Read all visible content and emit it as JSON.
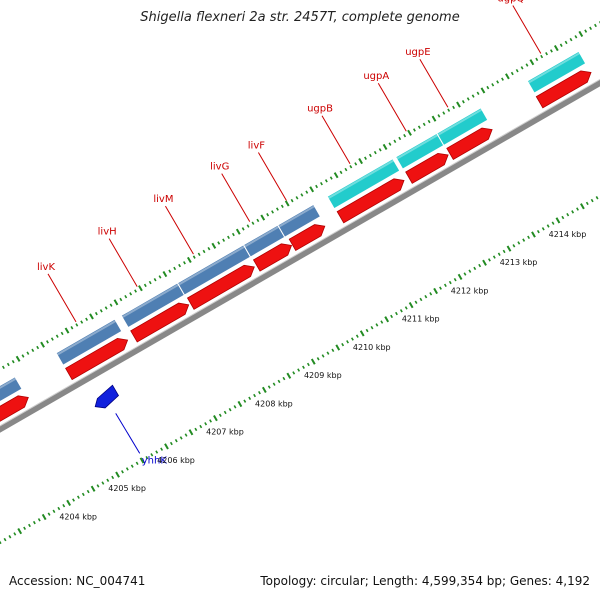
{
  "title": "Shigella flexneri 2a str. 2457T, complete genome",
  "footer": {
    "accession": "Accession: NC_004741",
    "summary": "Topology: circular; Length: 4,599,354 bp; Genes: 4,192"
  },
  "colors": {
    "background": "#ffffff",
    "backbone": "#888888",
    "tick": "#228B22",
    "gene_label": "#cc0000",
    "reverse_gene_label": "#0000cc",
    "cds": "#ee1111",
    "liv_feature": "#4f7fb3",
    "ugp_feature": "#22cccc",
    "yhhK_feature": "#1020dd"
  },
  "scale": {
    "unit": "kbp",
    "tick_labels": [
      "4204 kbp",
      "4205 kbp",
      "4206 kbp",
      "4207 kbp",
      "4208 kbp",
      "4209 kbp",
      "4210 kbp",
      "4211 kbp",
      "4212 kbp",
      "4213 kbp",
      "4214 kbp"
    ]
  },
  "genes": [
    {
      "name": "yhhK",
      "strand": "reverse"
    },
    {
      "name": "livK",
      "strand": "forward"
    },
    {
      "name": "livH",
      "strand": "forward"
    },
    {
      "name": "livM",
      "strand": "forward"
    },
    {
      "name": "livG",
      "strand": "forward"
    },
    {
      "name": "livF",
      "strand": "forward"
    },
    {
      "name": "ugpB",
      "strand": "forward"
    },
    {
      "name": "ugpA",
      "strand": "forward"
    },
    {
      "name": "ugpE",
      "strand": "forward"
    },
    {
      "name": "ugpQ",
      "strand": "forward"
    }
  ]
}
